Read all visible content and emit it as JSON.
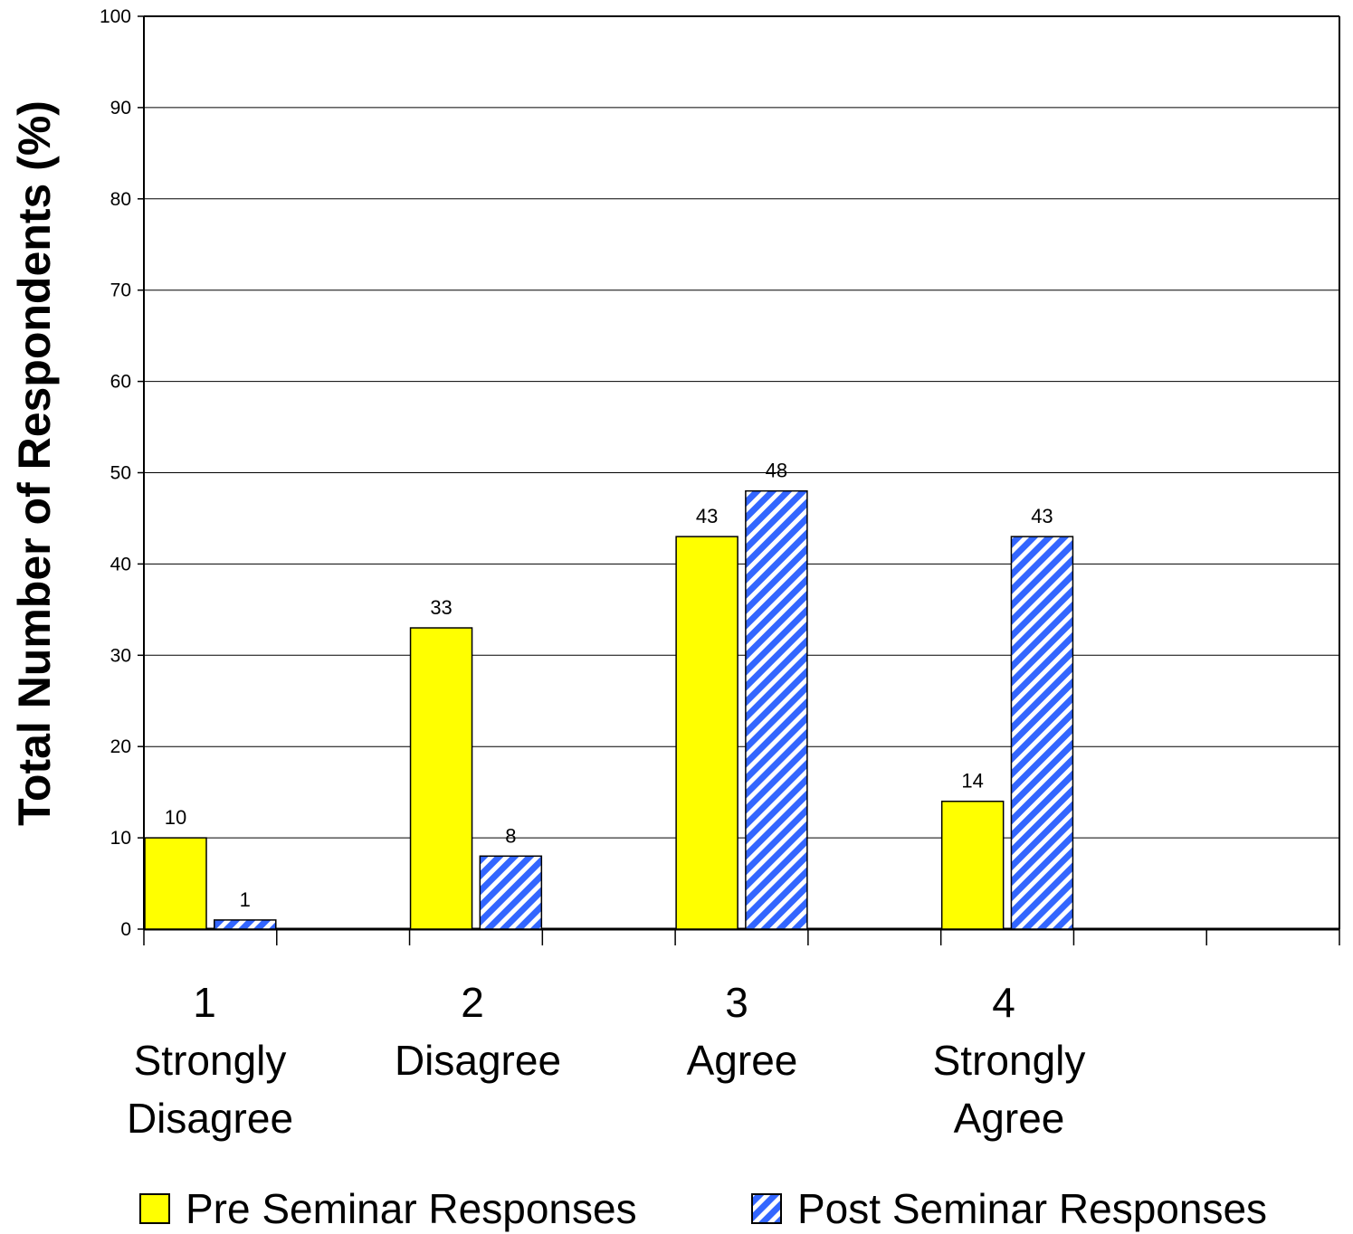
{
  "chart_data": {
    "type": "bar",
    "title": "",
    "xlabel": "",
    "ylabel": "Total Number of Respondents (%)",
    "ylim": [
      0,
      100
    ],
    "yticks": [
      0,
      10,
      20,
      30,
      40,
      50,
      60,
      70,
      80,
      90,
      100
    ],
    "grid": true,
    "legend_position": "bottom",
    "categories": [
      [
        "1",
        "Strongly",
        "Disagree"
      ],
      [
        "2",
        "Disagree"
      ],
      [
        "3",
        "Agree"
      ],
      [
        "4",
        "Strongly",
        "Agree"
      ]
    ],
    "series": [
      {
        "name": "Pre Seminar Responses",
        "values": [
          10,
          33,
          43,
          14
        ],
        "color": "#ffff00",
        "pattern": "solid"
      },
      {
        "name": "Post Seminar Responses",
        "values": [
          1,
          8,
          48,
          43
        ],
        "color": "#3366ff",
        "pattern": "diagonal-stripes"
      }
    ],
    "data_labels": [
      [
        "10",
        "33",
        "43",
        "14"
      ],
      [
        "1",
        "8",
        "48",
        "43"
      ]
    ]
  }
}
